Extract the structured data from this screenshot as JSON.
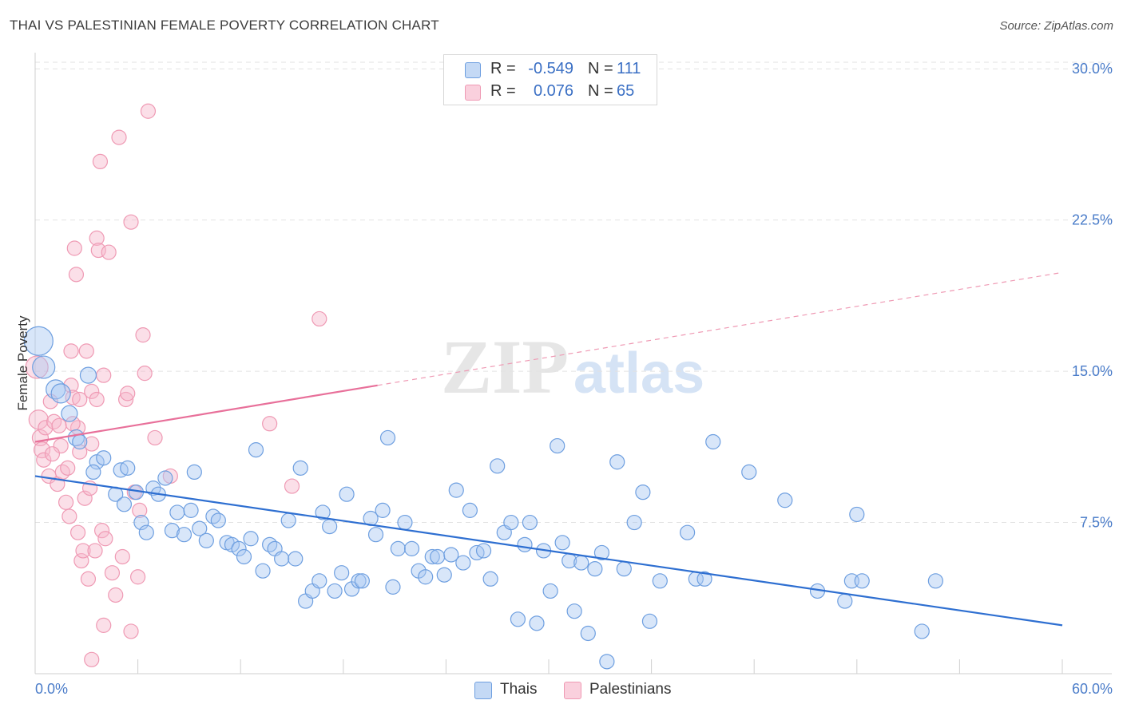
{
  "header": {
    "title": "THAI VS PALESTINIAN FEMALE POVERTY CORRELATION CHART",
    "source": "Source: ZipAtlas.com"
  },
  "legend": {
    "rows": [
      {
        "swatch_color": "#a9c8f1",
        "r_label": "R =",
        "r_value": "-0.549",
        "n_label": "N =",
        "n_value": "111"
      },
      {
        "swatch_color": "#f6b8cb",
        "r_label": "R =",
        "r_value": "0.076",
        "n_label": "N =",
        "n_value": "65"
      }
    ]
  },
  "bottom_legend": {
    "thais": "Thais",
    "palestinians": "Palestinians"
  },
  "chart_data": {
    "type": "scatter",
    "ylabel": "Female Poverty",
    "xlabel": "",
    "x_tick_labels": [
      "0.0%",
      "60.0%"
    ],
    "y_tick_labels": [
      "7.5%",
      "15.0%",
      "22.5%",
      "30.0%"
    ],
    "xlim": [
      0,
      60
    ],
    "ylim": [
      0,
      30.8
    ],
    "y_ticks": [
      7.5,
      15.0,
      22.5,
      30.0
    ],
    "grid": "horizontal dashed",
    "legend_position": "top-center",
    "colors": {
      "thais": "#5b93de",
      "palestinians": "#ef8fae",
      "thais_line": "#2e6fd1",
      "palestinians_line": "#e8709a",
      "tick_text": "#4a7cc9"
    },
    "series": [
      {
        "name": "Thais",
        "trend": {
          "x0": 0,
          "y0": 9.8,
          "x1": 60,
          "y1": 2.4
        },
        "points": [
          [
            0.2,
            16.5,
            18
          ],
          [
            0.5,
            15.2,
            14
          ],
          [
            1.2,
            14.1,
            12
          ],
          [
            1.5,
            13.9,
            12
          ],
          [
            2.0,
            12.9,
            10
          ],
          [
            3.1,
            14.8,
            10
          ],
          [
            2.4,
            11.7,
            10
          ],
          [
            2.6,
            11.5,
            9
          ],
          [
            3.6,
            10.5,
            9
          ],
          [
            4.0,
            10.7,
            9
          ],
          [
            3.4,
            10.0,
            9
          ],
          [
            4.7,
            8.9,
            9
          ],
          [
            5.0,
            10.1,
            9
          ],
          [
            5.2,
            8.4,
            9
          ],
          [
            5.4,
            10.2,
            9
          ],
          [
            5.9,
            9.0,
            9
          ],
          [
            6.2,
            7.5,
            9
          ],
          [
            6.5,
            7.0,
            9
          ],
          [
            6.9,
            9.2,
            9
          ],
          [
            7.2,
            8.9,
            9
          ],
          [
            7.6,
            9.7,
            9
          ],
          [
            8.0,
            7.1,
            9
          ],
          [
            8.3,
            8.0,
            9
          ],
          [
            8.7,
            6.9,
            9
          ],
          [
            9.1,
            8.1,
            9
          ],
          [
            9.3,
            10.0,
            9
          ],
          [
            9.6,
            7.2,
            9
          ],
          [
            10.0,
            6.6,
            9
          ],
          [
            10.4,
            7.8,
            9
          ],
          [
            10.7,
            7.6,
            9
          ],
          [
            11.2,
            6.5,
            9
          ],
          [
            11.5,
            6.4,
            9
          ],
          [
            11.9,
            6.2,
            9
          ],
          [
            12.2,
            5.8,
            9
          ],
          [
            12.6,
            6.7,
            9
          ],
          [
            12.9,
            11.1,
            9
          ],
          [
            13.3,
            5.1,
            9
          ],
          [
            13.7,
            6.4,
            9
          ],
          [
            14.0,
            6.2,
            9
          ],
          [
            14.4,
            5.7,
            9
          ],
          [
            14.8,
            7.6,
            9
          ],
          [
            15.2,
            5.7,
            9
          ],
          [
            15.5,
            10.2,
            9
          ],
          [
            15.8,
            3.6,
            9
          ],
          [
            16.2,
            4.1,
            9
          ],
          [
            16.6,
            4.6,
            9
          ],
          [
            16.8,
            8.0,
            9
          ],
          [
            17.2,
            7.3,
            9
          ],
          [
            17.5,
            4.1,
            9
          ],
          [
            17.9,
            5.0,
            9
          ],
          [
            18.2,
            8.9,
            9
          ],
          [
            18.5,
            4.2,
            9
          ],
          [
            18.9,
            4.6,
            9
          ],
          [
            19.1,
            4.6,
            9
          ],
          [
            19.6,
            7.7,
            9
          ],
          [
            19.9,
            6.9,
            9
          ],
          [
            20.3,
            8.1,
            9
          ],
          [
            20.6,
            11.7,
            9
          ],
          [
            20.9,
            4.3,
            9
          ],
          [
            21.2,
            6.2,
            9
          ],
          [
            21.6,
            7.5,
            9
          ],
          [
            22.0,
            6.2,
            9
          ],
          [
            22.4,
            5.1,
            9
          ],
          [
            22.8,
            4.8,
            9
          ],
          [
            23.2,
            5.8,
            9
          ],
          [
            23.5,
            5.8,
            9
          ],
          [
            23.9,
            4.9,
            9
          ],
          [
            24.3,
            5.9,
            9
          ],
          [
            24.6,
            9.1,
            9
          ],
          [
            25.0,
            5.5,
            9
          ],
          [
            25.4,
            8.1,
            9
          ],
          [
            25.8,
            6.0,
            9
          ],
          [
            26.2,
            6.1,
            9
          ],
          [
            26.6,
            4.7,
            9
          ],
          [
            27.0,
            10.3,
            9
          ],
          [
            27.4,
            7.0,
            9
          ],
          [
            27.8,
            7.5,
            9
          ],
          [
            28.2,
            2.7,
            9
          ],
          [
            28.6,
            6.4,
            9
          ],
          [
            28.9,
            7.5,
            9
          ],
          [
            29.3,
            2.5,
            9
          ],
          [
            29.7,
            6.1,
            9
          ],
          [
            30.1,
            4.1,
            9
          ],
          [
            30.5,
            11.3,
            9
          ],
          [
            30.8,
            6.5,
            9
          ],
          [
            31.2,
            5.6,
            9
          ],
          [
            31.5,
            3.1,
            9
          ],
          [
            31.9,
            5.5,
            9
          ],
          [
            32.3,
            2.0,
            9
          ],
          [
            32.7,
            5.2,
            9
          ],
          [
            33.1,
            6.0,
            9
          ],
          [
            33.4,
            0.6,
            9
          ],
          [
            34.0,
            10.5,
            9
          ],
          [
            34.4,
            5.2,
            9
          ],
          [
            35.0,
            7.5,
            9
          ],
          [
            35.5,
            9.0,
            9
          ],
          [
            35.9,
            2.6,
            9
          ],
          [
            36.5,
            4.6,
            9
          ],
          [
            38.1,
            7.0,
            9
          ],
          [
            38.6,
            4.7,
            9
          ],
          [
            39.1,
            4.7,
            9
          ],
          [
            39.6,
            11.5,
            9
          ],
          [
            41.7,
            10.0,
            9
          ],
          [
            43.8,
            8.6,
            9
          ],
          [
            45.7,
            4.1,
            9
          ],
          [
            47.3,
            3.6,
            9
          ],
          [
            47.7,
            4.6,
            9
          ],
          [
            48.3,
            4.6,
            9
          ],
          [
            48.0,
            7.9,
            9
          ],
          [
            51.8,
            2.1,
            9
          ],
          [
            52.6,
            4.6,
            9
          ]
        ]
      },
      {
        "name": "Palestinians",
        "trend": {
          "x0": 0,
          "y0": 11.5,
          "x1": 60,
          "y1": 19.9,
          "solid_until": 20.0
        },
        "points": [
          [
            0.1,
            15.2,
            14
          ],
          [
            0.2,
            12.6,
            12
          ],
          [
            0.3,
            11.7,
            10
          ],
          [
            0.4,
            11.1,
            10
          ],
          [
            0.5,
            10.6,
            9
          ],
          [
            0.6,
            12.2,
            9
          ],
          [
            0.8,
            9.8,
            9
          ],
          [
            1.1,
            12.5,
            9
          ],
          [
            1.3,
            9.4,
            9
          ],
          [
            1.5,
            11.3,
            9
          ],
          [
            1.6,
            10.0,
            9
          ],
          [
            1.8,
            8.5,
            9
          ],
          [
            1.9,
            10.2,
            9
          ],
          [
            2.0,
            7.8,
            9
          ],
          [
            2.1,
            16.0,
            9
          ],
          [
            2.1,
            14.3,
            9
          ],
          [
            2.2,
            13.7,
            9
          ],
          [
            2.3,
            21.1,
            9
          ],
          [
            2.4,
            19.8,
            9
          ],
          [
            2.5,
            7.0,
            9
          ],
          [
            2.5,
            12.2,
            9
          ],
          [
            2.6,
            13.6,
            9
          ],
          [
            2.7,
            5.6,
            9
          ],
          [
            2.8,
            6.1,
            9
          ],
          [
            2.9,
            8.7,
            9
          ],
          [
            3.0,
            16.0,
            9
          ],
          [
            3.1,
            4.7,
            9
          ],
          [
            3.2,
            9.2,
            9
          ],
          [
            3.3,
            11.4,
            9
          ],
          [
            3.3,
            14.0,
            9
          ],
          [
            3.5,
            6.1,
            9
          ],
          [
            3.6,
            21.6,
            9
          ],
          [
            3.6,
            13.6,
            9
          ],
          [
            3.7,
            21.0,
            9
          ],
          [
            3.8,
            25.4,
            9
          ],
          [
            3.9,
            7.1,
            9
          ],
          [
            4.0,
            14.8,
            9
          ],
          [
            4.0,
            2.4,
            9
          ],
          [
            4.1,
            6.7,
            9
          ],
          [
            4.3,
            20.9,
            9
          ],
          [
            4.5,
            5.0,
            9
          ],
          [
            4.7,
            3.9,
            9
          ],
          [
            4.9,
            26.6,
            9
          ],
          [
            5.1,
            5.8,
            9
          ],
          [
            5.3,
            13.6,
            9
          ],
          [
            5.4,
            13.9,
            9
          ],
          [
            5.6,
            2.1,
            9
          ],
          [
            5.6,
            22.4,
            9
          ],
          [
            5.8,
            9.0,
            9
          ],
          [
            6.0,
            4.8,
            9
          ],
          [
            6.1,
            8.1,
            9
          ],
          [
            6.3,
            16.8,
            9
          ],
          [
            6.4,
            14.9,
            9
          ],
          [
            6.6,
            27.9,
            9
          ],
          [
            7.0,
            11.7,
            9
          ],
          [
            7.9,
            9.8,
            9
          ],
          [
            13.7,
            12.4,
            9
          ],
          [
            15.0,
            9.3,
            9
          ],
          [
            16.6,
            17.6,
            9
          ],
          [
            3.3,
            0.7,
            9
          ],
          [
            0.9,
            13.5,
            9
          ],
          [
            1.4,
            12.3,
            9
          ],
          [
            1.0,
            10.9,
            9
          ],
          [
            2.6,
            11.0,
            9
          ],
          [
            2.2,
            12.4,
            9
          ]
        ]
      }
    ]
  }
}
